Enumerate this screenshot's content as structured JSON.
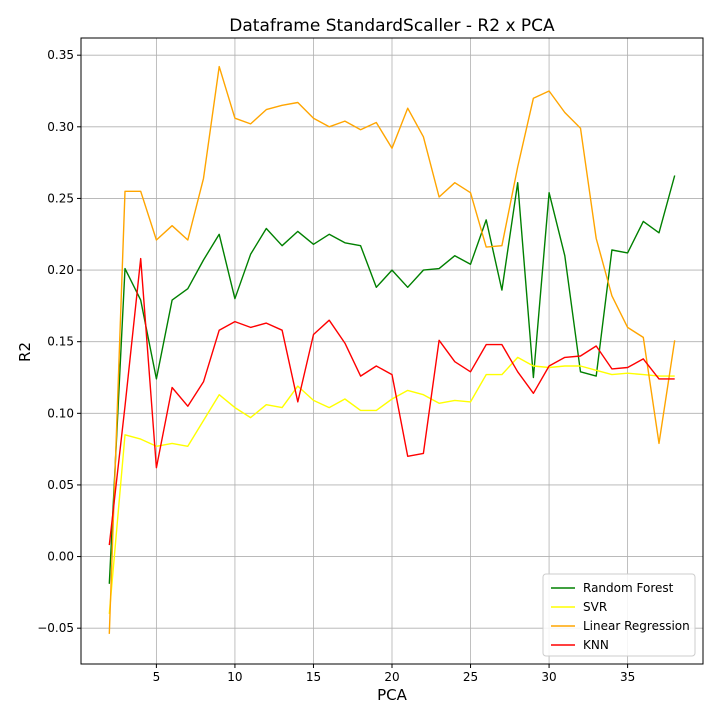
{
  "chart_data": {
    "type": "line",
    "title": "Dataframe StandardScaller - R2 x PCA",
    "xlabel": "PCA",
    "ylabel": "R2",
    "xlim": [
      0.2,
      39.8
    ],
    "ylim": [
      -0.075,
      0.362
    ],
    "xticks": [
      5,
      10,
      15,
      20,
      25,
      30,
      35
    ],
    "yticks": [
      -0.05,
      0.0,
      0.05,
      0.1,
      0.15,
      0.2,
      0.25,
      0.3,
      0.35
    ],
    "xtick_labels": [
      "5",
      "10",
      "15",
      "20",
      "25",
      "30",
      "35"
    ],
    "ytick_labels": [
      "−0.05",
      "0.00",
      "0.05",
      "0.10",
      "0.15",
      "0.20",
      "0.25",
      "0.30",
      "0.35"
    ],
    "grid": true,
    "legend_position": "bottom-right",
    "x": [
      2,
      3,
      4,
      5,
      6,
      7,
      8,
      9,
      10,
      11,
      12,
      13,
      14,
      15,
      16,
      17,
      18,
      19,
      20,
      21,
      22,
      23,
      24,
      25,
      26,
      27,
      28,
      29,
      30,
      31,
      32,
      33,
      34,
      35,
      36,
      37,
      38
    ],
    "series": [
      {
        "name": "Random Forest",
        "color": "#008000",
        "values": [
          -0.019,
          0.201,
          0.179,
          0.124,
          0.179,
          0.187,
          0.207,
          0.225,
          0.18,
          0.211,
          0.229,
          0.217,
          0.227,
          0.218,
          0.225,
          0.219,
          0.217,
          0.188,
          0.2,
          0.188,
          0.2,
          0.201,
          0.21,
          0.204,
          0.235,
          0.186,
          0.261,
          0.125,
          0.254,
          0.21,
          0.129,
          0.126,
          0.214,
          0.212,
          0.234,
          0.226,
          0.266
        ]
      },
      {
        "name": "SVR",
        "color": "#ffff00",
        "values": [
          -0.04,
          0.085,
          0.082,
          0.077,
          0.079,
          0.077,
          0.095,
          0.113,
          0.104,
          0.097,
          0.106,
          0.104,
          0.119,
          0.109,
          0.104,
          0.11,
          0.102,
          0.102,
          0.11,
          0.116,
          0.113,
          0.107,
          0.109,
          0.108,
          0.127,
          0.127,
          0.139,
          0.133,
          0.132,
          0.133,
          0.133,
          0.13,
          0.127,
          0.128,
          0.127,
          0.126,
          0.126
        ]
      },
      {
        "name": "Linear Regression",
        "color": "#ffa500",
        "values": [
          -0.054,
          0.255,
          0.255,
          0.221,
          0.231,
          0.221,
          0.264,
          0.342,
          0.306,
          0.302,
          0.312,
          0.315,
          0.317,
          0.306,
          0.3,
          0.304,
          0.298,
          0.303,
          0.285,
          0.313,
          0.293,
          0.251,
          0.261,
          0.254,
          0.216,
          0.217,
          0.272,
          0.32,
          0.325,
          0.31,
          0.299,
          0.222,
          0.182,
          0.16,
          0.153,
          0.079,
          0.151
        ]
      },
      {
        "name": "KNN",
        "color": "#ff0000",
        "values": [
          0.008,
          0.105,
          0.208,
          0.062,
          0.118,
          0.105,
          0.122,
          0.158,
          0.164,
          0.16,
          0.163,
          0.158,
          0.108,
          0.155,
          0.165,
          0.149,
          0.126,
          0.133,
          0.127,
          0.07,
          0.072,
          0.151,
          0.136,
          0.129,
          0.148,
          0.148,
          0.129,
          0.114,
          0.133,
          0.139,
          0.14,
          0.147,
          0.131,
          0.132,
          0.138,
          0.124,
          0.124
        ]
      }
    ]
  }
}
